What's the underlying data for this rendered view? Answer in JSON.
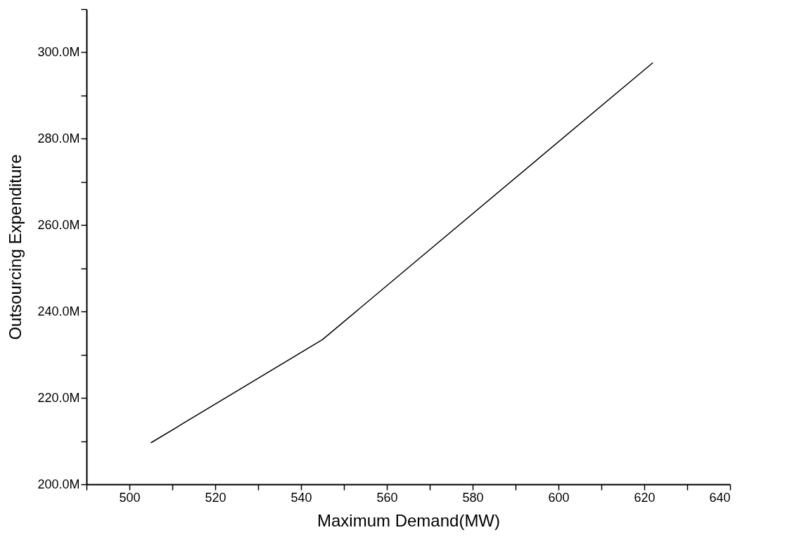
{
  "chart_data": {
    "type": "line",
    "xlabel": "Maximum Demand(MW)",
    "ylabel": "Outsourcing Expenditure",
    "x": [
      505,
      545,
      622
    ],
    "series": [
      {
        "color": "#000000",
        "values": [
          209.6,
          233.5,
          297.6
        ]
      }
    ],
    "xlim": [
      490,
      640
    ],
    "xticks": [
      {
        "value": 490,
        "label": null
      },
      500,
      {
        "value": 510,
        "label": null
      },
      520,
      {
        "value": 530,
        "label": null
      },
      540,
      {
        "value": 550,
        "label": null
      },
      560,
      {
        "value": 570,
        "label": null
      },
      580,
      {
        "value": 590,
        "label": null
      },
      600,
      {
        "value": 610,
        "label": null
      },
      620,
      {
        "value": 630,
        "label": null
      },
      640
    ],
    "ylim": [
      200,
      310
    ],
    "yticks": [
      {
        "value": 200,
        "label": "200.0M"
      },
      {
        "value": 210,
        "label": null
      },
      {
        "value": 220,
        "label": "220.0M"
      },
      {
        "value": 230,
        "label": null
      },
      {
        "value": 240,
        "label": "240.0M"
      },
      {
        "value": 250,
        "label": null
      },
      {
        "value": 260,
        "label": "260.0M"
      },
      {
        "value": 270,
        "label": null
      },
      {
        "value": 280,
        "label": "280.0M"
      },
      {
        "value": 290,
        "label": null
      },
      {
        "value": 300,
        "label": "300.0M"
      },
      {
        "value": 310,
        "label": null
      }
    ],
    "grid": false,
    "legend": false,
    "marker": "none",
    "line_style": "solid"
  }
}
